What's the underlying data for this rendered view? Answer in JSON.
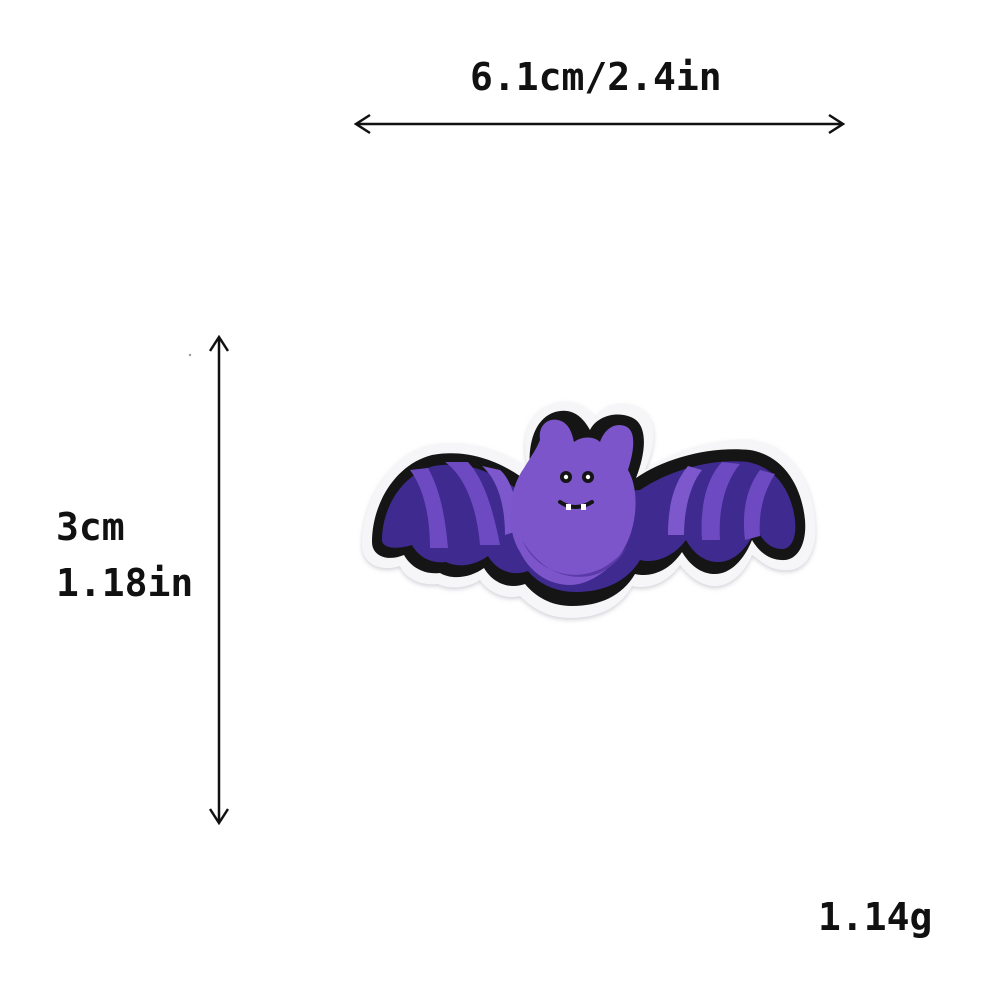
{
  "dimensions": {
    "width": "6.1cm/2.4in",
    "height_cm": "3cm",
    "height_in": "1.18in",
    "weight": "1.14g"
  },
  "product": {
    "icon": "bat-patch-icon",
    "colors": {
      "body": "#7b55c9",
      "wing_shadow": "#3f2a8f",
      "outline": "#151515",
      "border": "#f5f5f7"
    }
  }
}
